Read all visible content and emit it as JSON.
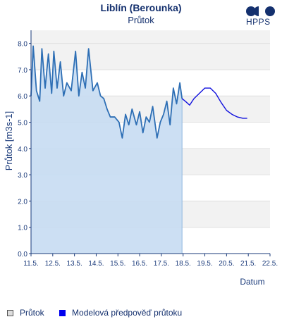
{
  "title": "Liblín (Berounka)",
  "subtitle": "Průtok",
  "logo_text": "HPPS",
  "legend": {
    "observed": "Průtok",
    "model": "Modelová předpověď průtoku"
  },
  "colors": {
    "observed_line": "#2e6fb5",
    "observed_fill": "#c6dcf2",
    "model_line": "#1010dd",
    "band": "#f2f2f2",
    "axis": "#1a3a7a"
  },
  "chart_data": {
    "type": "line",
    "title": "Liblín (Berounka)",
    "subtitle": "Průtok",
    "xlabel": "Datum",
    "ylabel": "Průtok [m3s-1]",
    "x_unit_note": "days of month (May)",
    "xlim": [
      11.5,
      22.5
    ],
    "ylim": [
      0.0,
      8.5
    ],
    "x_ticks": [
      "11.5.",
      "12.5.",
      "13.5.",
      "14.5.",
      "15.5.",
      "16.5.",
      "17.5.",
      "18.5.",
      "19.5.",
      "20.5.",
      "21.5.",
      "22.5."
    ],
    "y_ticks": [
      "0.0",
      "1.0",
      "2.0",
      "3.0",
      "4.0",
      "5.0",
      "6.0",
      "7.0",
      "8.0"
    ],
    "grid": "alternating horizontal bands",
    "legend_position": "bottom-left",
    "series": [
      {
        "name": "Průtok",
        "x": [
          11.5,
          11.6,
          11.75,
          11.9,
          12.0,
          12.15,
          12.3,
          12.45,
          12.55,
          12.7,
          12.85,
          13.0,
          13.15,
          13.35,
          13.55,
          13.7,
          13.85,
          14.0,
          14.15,
          14.35,
          14.55,
          14.7,
          14.85,
          15.0,
          15.15,
          15.35,
          15.55,
          15.7,
          15.85,
          16.0,
          16.15,
          16.35,
          16.5,
          16.65,
          16.8,
          16.95,
          17.1,
          17.3,
          17.45,
          17.6,
          17.75,
          17.9,
          18.05,
          18.2,
          18.35,
          18.45
        ],
        "values": [
          6.0,
          7.9,
          6.2,
          5.8,
          7.8,
          6.3,
          7.6,
          6.1,
          7.7,
          6.3,
          7.3,
          6.0,
          6.5,
          6.2,
          7.7,
          6.0,
          6.9,
          6.3,
          7.8,
          6.2,
          6.5,
          6.0,
          5.9,
          5.5,
          5.2,
          5.2,
          5.0,
          4.4,
          5.3,
          4.9,
          5.5,
          4.9,
          5.4,
          4.6,
          5.2,
          5.0,
          5.6,
          4.4,
          5.0,
          5.3,
          5.8,
          4.9,
          6.3,
          5.7,
          6.5,
          5.9
        ]
      },
      {
        "name": "Modelová předpověď průtoku",
        "x": [
          18.45,
          18.6,
          18.8,
          19.0,
          19.25,
          19.5,
          19.75,
          20.0,
          20.25,
          20.5,
          20.75,
          21.0,
          21.25,
          21.45
        ],
        "values": [
          5.9,
          5.8,
          5.65,
          5.9,
          6.1,
          6.3,
          6.3,
          6.1,
          5.75,
          5.45,
          5.3,
          5.2,
          5.15,
          5.15
        ]
      }
    ]
  }
}
